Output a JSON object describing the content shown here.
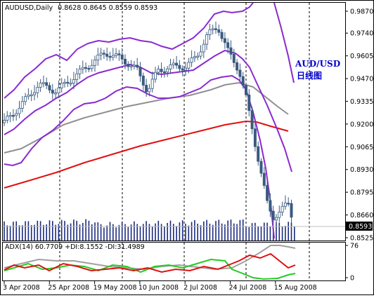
{
  "main_header": {
    "symbol": "AUDUSD,Daily",
    "ohlc": "0.8628 0.8645 0.8559 0.8593"
  },
  "annotation": {
    "line1": "AUD/USD",
    "line2": "日线图"
  },
  "current_price": "0.8593",
  "price_axis": {
    "ticks": [
      {
        "label": "0.9870",
        "value": 0.987
      },
      {
        "label": "0.9740",
        "value": 0.974
      },
      {
        "label": "0.9605",
        "value": 0.9605
      },
      {
        "label": "0.9470",
        "value": 0.947
      },
      {
        "label": "0.9335",
        "value": 0.9335
      },
      {
        "label": "0.9200",
        "value": 0.92
      },
      {
        "label": "0.9065",
        "value": 0.9065
      },
      {
        "label": "0.8930",
        "value": 0.893
      },
      {
        "label": "0.8795",
        "value": 0.8795
      },
      {
        "label": "0.8660",
        "value": 0.866
      },
      {
        "label": "0.8525",
        "value": 0.8525
      }
    ]
  },
  "adx_header": {
    "text": "ADX(14) 60.7709 +DI:8.1552 -DI:31.4989"
  },
  "adx_axis": {
    "ticks": [
      {
        "label": "76",
        "value": 76
      },
      {
        "label": "0",
        "value": 0
      }
    ]
  },
  "date_axis": {
    "labels": [
      "3 Apr 2008",
      "25 Apr 2008",
      "19 May 2008",
      "10 Jun 2008",
      "2 Jul 2008",
      "24 Jul 2008",
      "15 Aug 2008"
    ]
  },
  "colors": {
    "candles": "#3a5a80",
    "bollinger": "#8a2ad0",
    "ma_grey": "#909090",
    "ma_red": "#e01010",
    "adx_grey": "#a0a0a0",
    "di_plus": "#22cc22",
    "di_minus": "#e01010",
    "volume": "#1a2a80"
  }
}
